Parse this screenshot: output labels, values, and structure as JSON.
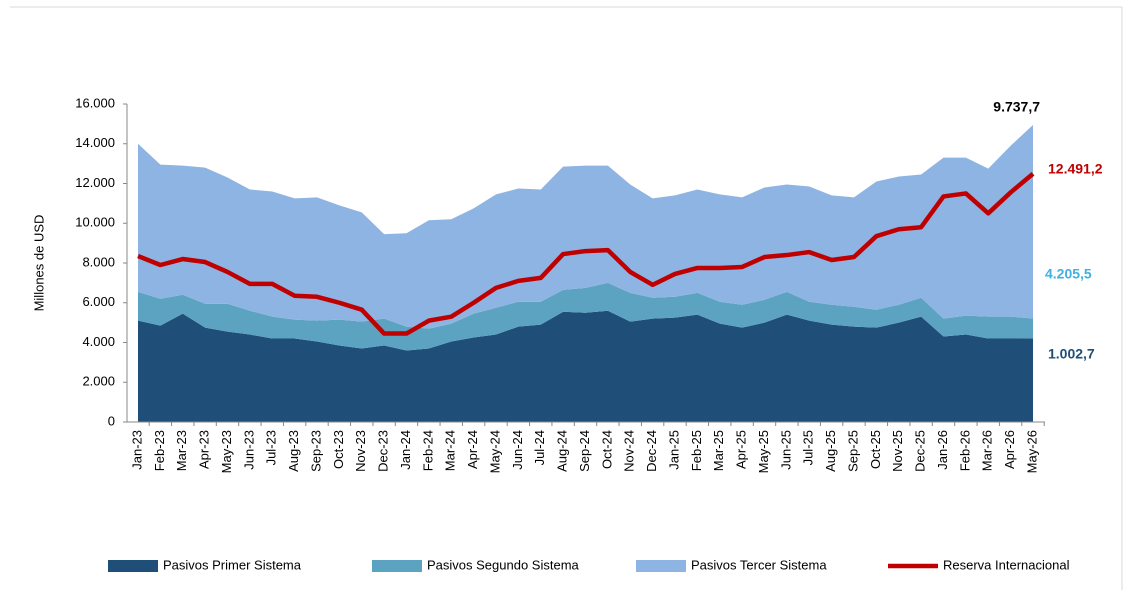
{
  "chart_data": {
    "type": "stacked-area-line",
    "ylabel": "Millones de USD",
    "categories": [
      "Jan-23",
      "Feb-23",
      "Mar-23",
      "Apr-23",
      "May-23",
      "Jun-23",
      "Jul-23",
      "Aug-23",
      "Sep-23",
      "Oct-23",
      "Nov-23",
      "Dec-23",
      "Jan-24",
      "Feb-24",
      "Mar-24",
      "Apr-24",
      "May-24",
      "Jun-24",
      "Jul-24",
      "Aug-24",
      "Sep-24",
      "Oct-24",
      "Nov-24",
      "Dec-24",
      "Jan-25",
      "Feb-25",
      "Mar-25",
      "Apr-25",
      "May-25",
      "Jun-25",
      "Jul-25",
      "Aug-25",
      "Sep-25",
      "Oct-25",
      "Nov-25",
      "Dec-25",
      "Jan-26",
      "Feb-26",
      "Mar-26",
      "Apr-26",
      "May-26"
    ],
    "series": [
      {
        "name": "Pasivos Primer Sistema",
        "color": "#1f4e79",
        "kind": "area",
        "end_label": "4.205,5",
        "end_label_color": "#3fb1e0",
        "values": [
          5100,
          4850,
          5450,
          4750,
          4550,
          4400,
          4200,
          4200,
          4050,
          3850,
          3700,
          3850,
          3600,
          3700,
          4050,
          4250,
          4400,
          4800,
          4900,
          5550,
          5500,
          5600,
          5050,
          5200,
          5250,
          5400,
          4950,
          4750,
          5000,
          5400,
          5100,
          4900,
          4800,
          4750,
          5000,
          5300,
          4300,
          4400,
          4200,
          4200,
          4205.5
        ]
      },
      {
        "name": "Pasivos Segundo Sistema",
        "color": "#5ba3c0",
        "kind": "area",
        "end_label": "1.002,7",
        "end_label_color": "#1f4e79",
        "values": [
          1450,
          1350,
          950,
          1200,
          1400,
          1200,
          1100,
          950,
          1050,
          1300,
          1350,
          1350,
          1200,
          1000,
          900,
          1200,
          1350,
          1250,
          1150,
          1100,
          1250,
          1400,
          1450,
          1050,
          1050,
          1100,
          1100,
          1150,
          1150,
          1150,
          950,
          1000,
          1000,
          900,
          900,
          950,
          900,
          950,
          1100,
          1100,
          1002.7
        ]
      },
      {
        "name": "Pasivos Tercer Sistema",
        "color": "#8db4e2",
        "kind": "area",
        "end_label": "9.737,7",
        "end_label_color": "#000000",
        "values": [
          7450,
          6750,
          6500,
          6850,
          6350,
          6100,
          6300,
          6100,
          6200,
          5750,
          5500,
          4250,
          4700,
          5450,
          5250,
          5300,
          5700,
          5700,
          5650,
          6200,
          6150,
          5900,
          5450,
          5000,
          5100,
          5200,
          5400,
          5400,
          5650,
          5400,
          5800,
          5500,
          5500,
          6450,
          6450,
          6200,
          8100,
          7950,
          7450,
          8600,
          9737.7
        ]
      },
      {
        "name": "Reserva Internacional",
        "color": "#c00000",
        "kind": "line",
        "end_label": "12.491,2",
        "end_label_color": "#c00000",
        "values": [
          8350,
          7900,
          8200,
          8050,
          7550,
          6950,
          6950,
          6350,
          6300,
          6000,
          5650,
          4450,
          4450,
          5100,
          5300,
          6000,
          6750,
          7100,
          7250,
          8450,
          8600,
          8650,
          7550,
          6900,
          7450,
          7750,
          7750,
          7800,
          8300,
          8400,
          8550,
          8150,
          8300,
          9350,
          9700,
          9800,
          11350,
          11500,
          10500,
          11550,
          12491.2
        ]
      }
    ],
    "ylim": [
      0,
      16000
    ],
    "yticks": [
      0,
      {
        "value": 2000,
        "label": "2.000"
      },
      {
        "value": 4000,
        "label": "4.000"
      },
      {
        "value": 6000,
        "label": "6.000"
      },
      {
        "value": 8000,
        "label": "8.000"
      },
      {
        "value": 10000,
        "label": "10.000"
      },
      {
        "value": 12000,
        "label": "12.000"
      },
      {
        "value": 14000,
        "label": "14.000"
      },
      {
        "value": 16000,
        "label": "16.000"
      }
    ],
    "legend": "bottom"
  }
}
